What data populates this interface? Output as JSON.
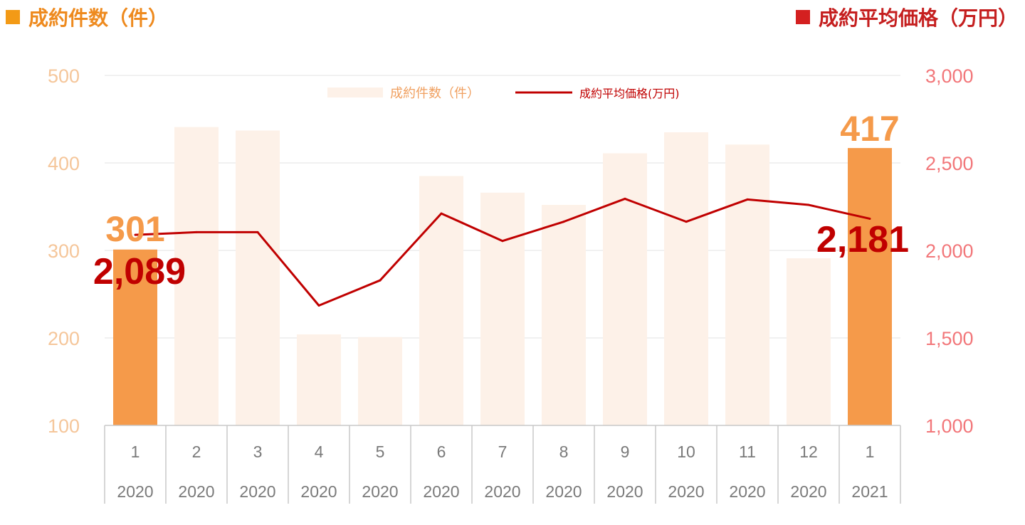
{
  "titles": {
    "left": "成約件数（件）",
    "right": "成約平均価格（万円）"
  },
  "colors": {
    "bar_highlight": "#f59a4a",
    "bar_muted": "#fdf1e8",
    "line": "#c00000",
    "left_axis_text": "#f5c69a",
    "right_axis_text": "#f2777a",
    "highlight_value_text": "#f59a4a",
    "price_value_text": "#c00000"
  },
  "legend": {
    "position": "top-center",
    "items": [
      {
        "label": "成約件数（件）",
        "kind": "bar"
      },
      {
        "label": "成約平均価格(万円)",
        "kind": "line"
      }
    ]
  },
  "chart_data": {
    "type": "bar+line",
    "categories": [
      {
        "month": "1",
        "year": "2020"
      },
      {
        "month": "2",
        "year": "2020"
      },
      {
        "month": "3",
        "year": "2020"
      },
      {
        "month": "4",
        "year": "2020"
      },
      {
        "month": "5",
        "year": "2020"
      },
      {
        "month": "6",
        "year": "2020"
      },
      {
        "month": "7",
        "year": "2020"
      },
      {
        "month": "8",
        "year": "2020"
      },
      {
        "month": "9",
        "year": "2020"
      },
      {
        "month": "10",
        "year": "2020"
      },
      {
        "month": "11",
        "year": "2020"
      },
      {
        "month": "12",
        "year": "2020"
      },
      {
        "month": "1",
        "year": "2021"
      }
    ],
    "series": [
      {
        "name": "成約件数（件）",
        "type": "bar",
        "axis": "left",
        "values": [
          301,
          441,
          437,
          204,
          201,
          385,
          366,
          352,
          411,
          435,
          421,
          291,
          417
        ],
        "highlighted": [
          0,
          12
        ]
      },
      {
        "name": "成約平均価格(万円)",
        "type": "line",
        "axis": "right",
        "values": [
          2089,
          2104,
          2104,
          1685,
          1829,
          2211,
          2054,
          2164,
          2295,
          2164,
          2291,
          2260,
          2181
        ]
      }
    ],
    "y_left": {
      "min": 100,
      "max": 500,
      "ticks": [
        "100",
        "200",
        "300",
        "400",
        "500"
      ],
      "tick_values": [
        100,
        200,
        300,
        400,
        500
      ]
    },
    "y_right": {
      "min": 1000,
      "max": 3000,
      "ticks": [
        "1,000",
        "1,500",
        "2,000",
        "2,500",
        "3,000"
      ],
      "tick_values": [
        1000,
        1500,
        2000,
        2500,
        3000
      ]
    },
    "grid": true,
    "callouts": {
      "bar_first": "301",
      "bar_last": "417",
      "line_first": "2,089",
      "line_last": "2,181"
    }
  }
}
